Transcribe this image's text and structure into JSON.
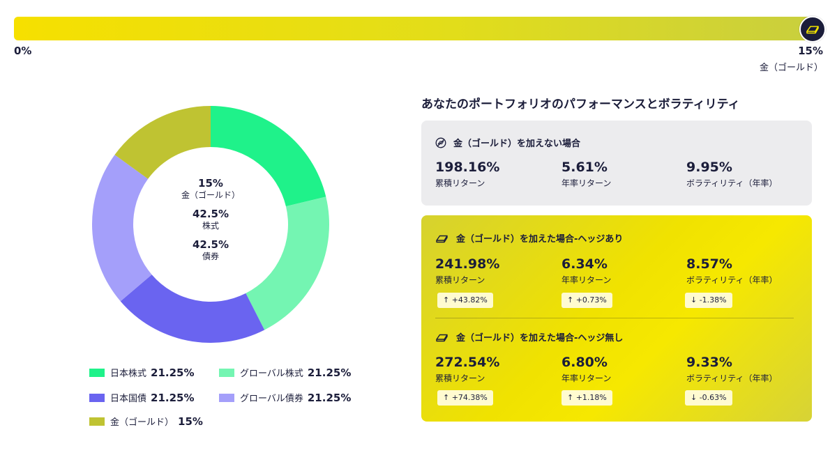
{
  "slider": {
    "min_label": "0%",
    "max_label": "15%",
    "asset_label": "金（ゴールド）",
    "value_percent": 15,
    "handle_icon": "gold-bar-icon"
  },
  "chart_data": {
    "type": "pie",
    "variant": "donut",
    "categories": [
      "日本株式",
      "グローバル株式",
      "日本国債",
      "グローバル債券",
      "金（ゴールド）"
    ],
    "values": [
      21.25,
      21.25,
      21.25,
      21.25,
      15
    ],
    "colors": [
      "#1ff28a",
      "#74f5b2",
      "#6a64f0",
      "#a49ffa",
      "#bfc332"
    ],
    "center_labels": [
      {
        "value": "15%",
        "label": "金（ゴールド）"
      },
      {
        "value": "42.5%",
        "label": "株式"
      },
      {
        "value": "42.5%",
        "label": "債券"
      }
    ],
    "legend": [
      {
        "name": "日本株式",
        "value": "21.25%",
        "color": "#1ff28a"
      },
      {
        "name": "グローバル株式",
        "value": "21.25%",
        "color": "#74f5b2"
      },
      {
        "name": "日本国債",
        "value": "21.25%",
        "color": "#6a64f0"
      },
      {
        "name": "グローバル債券",
        "value": "21.25%",
        "color": "#a49ffa"
      },
      {
        "name": "金（ゴールド）",
        "value": "15%",
        "color": "#bfc332"
      }
    ]
  },
  "performance": {
    "title": "あなたのポートフォリオのパフォーマンスとボラティリティ",
    "without_gold": {
      "heading": "金（ゴールド）を加えない場合",
      "metrics": [
        {
          "value": "198.16%",
          "label": "累積リターン"
        },
        {
          "value": "5.61%",
          "label": "年率リターン"
        },
        {
          "value": "9.95%",
          "label": "ボラティリティ（年率）"
        }
      ]
    },
    "with_gold_hedged": {
      "heading": "金（ゴールド）を加えた場合-ヘッジあり",
      "metrics": [
        {
          "value": "241.98%",
          "label": "累積リターン",
          "delta": "↑ +43.82%"
        },
        {
          "value": "6.34%",
          "label": "年率リターン",
          "delta": "↑ +0.73%"
        },
        {
          "value": "8.57%",
          "label": "ボラティリティ（年率）",
          "delta": "↓ -1.38%"
        }
      ]
    },
    "with_gold_unhedged": {
      "heading": "金（ゴールド）を加えた場合-ヘッジ無し",
      "metrics": [
        {
          "value": "272.54%",
          "label": "累積リターン",
          "delta": "↑ +74.38%"
        },
        {
          "value": "6.80%",
          "label": "年率リターン",
          "delta": "↑ +1.18%"
        },
        {
          "value": "9.33%",
          "label": "ボラティリティ（年率）",
          "delta": "↓ -0.63%"
        }
      ]
    }
  }
}
